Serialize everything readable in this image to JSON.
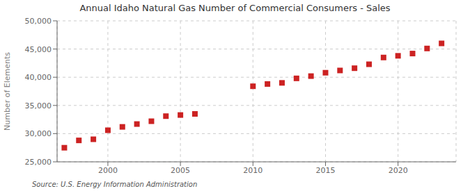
{
  "chart_data": {
    "type": "scatter",
    "title": "Annual Idaho Natural Gas Number of Commercial Consumers - Sales",
    "ylabel": "Number of Elements",
    "annotation": "Source: U.S. Energy Information Administration",
    "x": [
      1997,
      1998,
      1999,
      2000,
      2001,
      2002,
      2003,
      2004,
      2005,
      2006,
      2010,
      2011,
      2012,
      2013,
      2014,
      2015,
      2016,
      2017,
      2018,
      2019,
      2020,
      2021,
      2022,
      2023
    ],
    "values": [
      27500,
      28800,
      29000,
      30600,
      31200,
      31700,
      32200,
      33100,
      33300,
      33500,
      38400,
      38800,
      39000,
      39800,
      40200,
      40800,
      41200,
      41600,
      42300,
      43500,
      43800,
      44200,
      45100,
      46000
    ],
    "color": "#cc2222",
    "marker": "square",
    "xlim": [
      1996.5,
      2024
    ],
    "xticks": [
      2000,
      2005,
      2010,
      2015,
      2020
    ],
    "ylim": [
      25000,
      50000
    ],
    "yticks": [
      {
        "value": 25000,
        "label": "25,000"
      },
      {
        "value": 30000,
        "label": "30,000"
      },
      {
        "value": 35000,
        "label": "35,000"
      },
      {
        "value": 40000,
        "label": "40,000"
      },
      {
        "value": 45000,
        "label": "45,000"
      },
      {
        "value": 50000,
        "label": "50,000"
      }
    ],
    "grid": true
  }
}
